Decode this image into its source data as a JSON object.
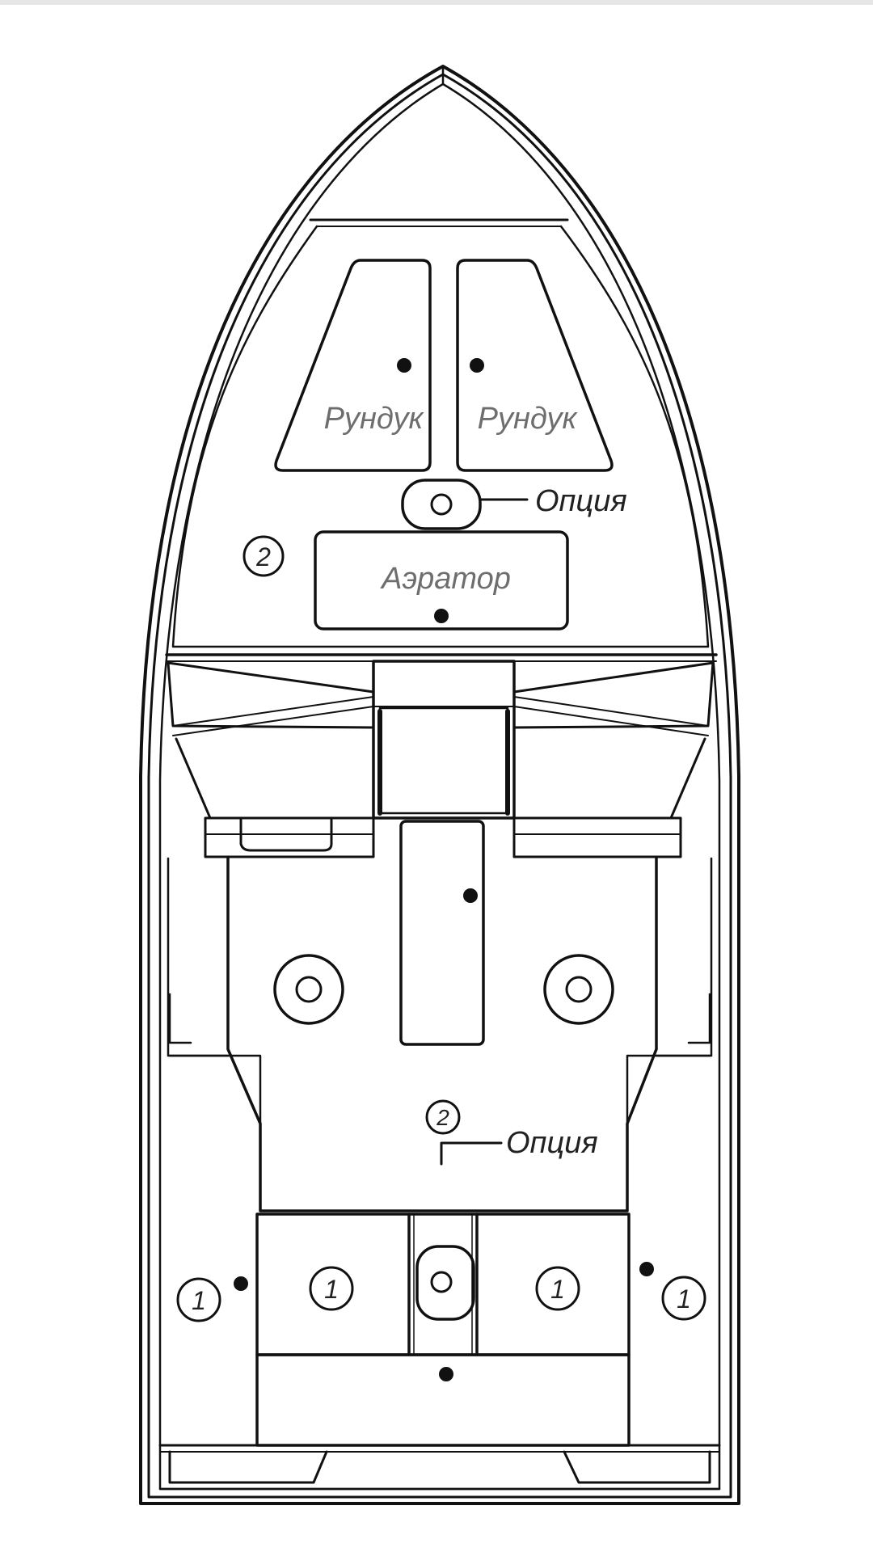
{
  "labels": {
    "locker_left": "Рундук",
    "locker_right": "Рундук",
    "aerator": "Аэратор",
    "option_top": "Опция",
    "option_bottom": "Опция"
  },
  "markers": {
    "two_forward": "2",
    "two_mid": "2",
    "one_outer_left": "1",
    "one_inner_left": "1",
    "one_inner_right": "1",
    "one_outer_right": "1"
  },
  "colors": {
    "stroke": "#111111",
    "background": "#ffffff",
    "topbar": "#e6e6e6"
  }
}
